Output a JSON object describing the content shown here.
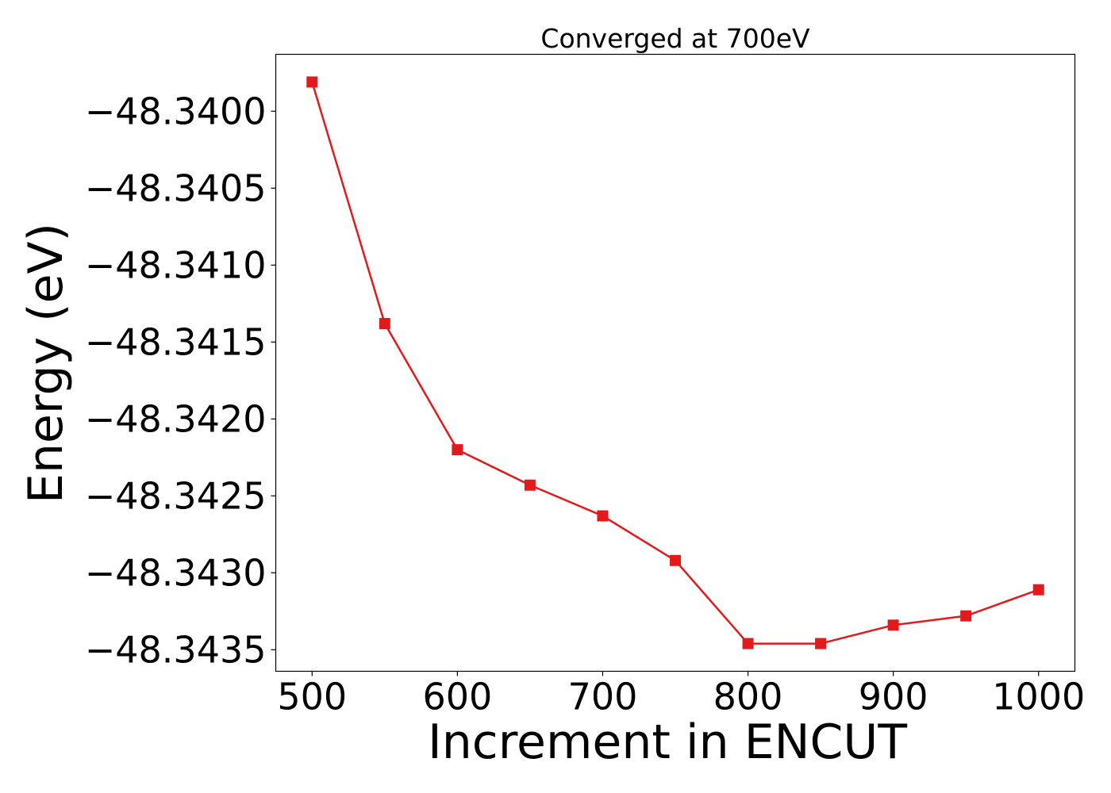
{
  "chart_data": {
    "type": "line",
    "title": "Converged at 700eV",
    "xlabel": "Increment in ENCUT",
    "ylabel": "Energy (eV)",
    "x": [
      500,
      550,
      600,
      650,
      700,
      750,
      800,
      850,
      900,
      950,
      1000
    ],
    "series": [
      {
        "values": [
          -48.33981,
          -48.34138,
          -48.3422,
          -48.34243,
          -48.34263,
          -48.34292,
          -48.34346,
          -48.34346,
          -48.34334,
          -48.34328,
          -48.34311
        ],
        "color": "#e31a1c",
        "marker": "square"
      }
    ],
    "xlim": [
      475,
      1025
    ],
    "ylim": [
      -48.34364,
      -48.33963
    ],
    "xticks": [
      500,
      600,
      700,
      800,
      900,
      1000
    ],
    "xtick_labels": [
      "500",
      "600",
      "700",
      "800",
      "900",
      "1000"
    ],
    "yticks": [
      -48.34,
      -48.3405,
      -48.341,
      -48.3415,
      -48.342,
      -48.3425,
      -48.343,
      -48.3435
    ],
    "ytick_labels": [
      "−48.3400",
      "−48.3405",
      "−48.3410",
      "−48.3415",
      "−48.3420",
      "−48.3425",
      "−48.3430",
      "−48.3435"
    ],
    "grid": false,
    "legend": "none"
  }
}
